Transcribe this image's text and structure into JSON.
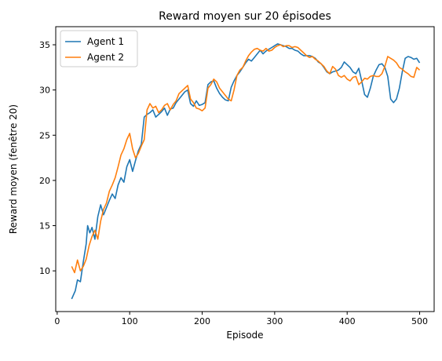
{
  "chart_data": {
    "type": "line",
    "title": "Reward moyen sur 20 épisodes",
    "xlabel": "Episode",
    "ylabel": "Reward moyen (fenêtre 20)",
    "xlim": [
      -2,
      520
    ],
    "ylim": [
      5.5,
      37
    ],
    "xticks": [
      0,
      100,
      200,
      300,
      400,
      500
    ],
    "yticks": [
      10,
      15,
      20,
      25,
      30,
      35
    ],
    "grid": false,
    "legend_position": "top-left",
    "series": [
      {
        "name": "Agent 1",
        "color": "#1f77b4",
        "x": [
          20,
          25,
          28,
          32,
          36,
          40,
          42,
          45,
          48,
          52,
          56,
          60,
          64,
          68,
          72,
          76,
          80,
          84,
          88,
          92,
          96,
          100,
          104,
          108,
          112,
          116,
          120,
          124,
          128,
          132,
          136,
          140,
          144,
          148,
          152,
          156,
          160,
          164,
          168,
          172,
          176,
          180,
          184,
          188,
          192,
          196,
          200,
          204,
          208,
          212,
          216,
          220,
          224,
          228,
          232,
          236,
          240,
          244,
          248,
          252,
          256,
          260,
          264,
          268,
          272,
          276,
          280,
          284,
          288,
          292,
          296,
          300,
          304,
          308,
          312,
          316,
          320,
          324,
          328,
          332,
          336,
          340,
          344,
          348,
          352,
          356,
          360,
          364,
          368,
          372,
          376,
          380,
          384,
          388,
          392,
          396,
          400,
          404,
          408,
          412,
          416,
          420,
          424,
          428,
          432,
          436,
          440,
          444,
          448,
          452,
          456,
          460,
          464,
          468,
          472,
          476,
          480,
          484,
          488,
          492,
          496,
          500
        ],
        "values": [
          6.9,
          7.8,
          9.0,
          8.8,
          11.0,
          13.0,
          15.0,
          14.2,
          14.8,
          13.5,
          16.0,
          17.3,
          16.2,
          17.0,
          17.8,
          18.5,
          18.0,
          19.5,
          20.3,
          19.8,
          21.5,
          22.3,
          21.0,
          22.2,
          23.3,
          24.0,
          27.0,
          27.3,
          27.5,
          27.8,
          27.0,
          27.3,
          27.6,
          28.0,
          27.2,
          27.9,
          28.0,
          28.6,
          29.0,
          29.4,
          29.8,
          30.0,
          28.5,
          28.2,
          28.8,
          28.3,
          28.4,
          28.6,
          30.6,
          30.9,
          31.0,
          30.2,
          29.6,
          29.2,
          28.9,
          28.8,
          30.3,
          31.0,
          31.6,
          32.0,
          32.5,
          33.0,
          33.4,
          33.2,
          33.6,
          34.0,
          34.4,
          34.0,
          34.3,
          34.5,
          34.7,
          34.9,
          35.1,
          35.0,
          34.9,
          34.8,
          34.6,
          34.6,
          34.4,
          34.3,
          34.0,
          33.8,
          33.8,
          33.8,
          33.7,
          33.5,
          33.1,
          32.9,
          32.5,
          32.0,
          31.8,
          32.0,
          32.1,
          32.2,
          32.5,
          33.1,
          32.8,
          32.5,
          32.0,
          31.8,
          32.4,
          31.0,
          29.5,
          29.2,
          30.2,
          31.5,
          32.2,
          32.8,
          32.9,
          32.5,
          31.5,
          29.0,
          28.6,
          29.0,
          30.2,
          32.0,
          33.5,
          33.7,
          33.6,
          33.4,
          33.5,
          33.0
        ]
      },
      {
        "name": "Agent 2",
        "color": "#ff7f0e",
        "x": [
          20,
          24,
          28,
          32,
          36,
          40,
          44,
          48,
          52,
          56,
          60,
          64,
          68,
          72,
          76,
          80,
          84,
          88,
          92,
          96,
          100,
          104,
          108,
          112,
          116,
          120,
          124,
          128,
          132,
          136,
          140,
          144,
          148,
          152,
          156,
          160,
          164,
          168,
          172,
          176,
          180,
          184,
          188,
          192,
          196,
          200,
          204,
          208,
          212,
          216,
          220,
          224,
          228,
          232,
          236,
          240,
          244,
          248,
          252,
          256,
          260,
          264,
          268,
          272,
          276,
          280,
          284,
          288,
          292,
          296,
          300,
          304,
          308,
          312,
          316,
          320,
          324,
          328,
          332,
          336,
          340,
          344,
          348,
          352,
          356,
          360,
          364,
          368,
          372,
          376,
          380,
          384,
          388,
          392,
          396,
          400,
          404,
          408,
          412,
          416,
          420,
          424,
          428,
          432,
          436,
          440,
          444,
          448,
          452,
          456,
          460,
          464,
          468,
          472,
          476,
          480,
          484,
          488,
          492,
          496,
          500
        ],
        "values": [
          10.5,
          9.8,
          11.2,
          10.0,
          10.5,
          11.3,
          12.8,
          13.8,
          14.5,
          13.5,
          15.5,
          16.8,
          17.5,
          18.8,
          19.5,
          20.3,
          21.5,
          22.8,
          23.5,
          24.5,
          25.2,
          23.5,
          22.5,
          23.0,
          23.8,
          24.5,
          27.8,
          28.5,
          28.0,
          28.2,
          27.5,
          27.8,
          28.3,
          28.5,
          27.8,
          28.4,
          28.8,
          29.6,
          29.9,
          30.2,
          30.5,
          29.0,
          28.6,
          28.0,
          27.9,
          27.7,
          28.0,
          30.2,
          30.6,
          31.2,
          30.9,
          30.2,
          29.8,
          29.4,
          29.0,
          28.8,
          30.0,
          31.6,
          32.2,
          32.5,
          33.2,
          33.8,
          34.2,
          34.5,
          34.6,
          34.4,
          34.3,
          34.6,
          34.3,
          34.4,
          34.7,
          34.9,
          35.0,
          34.8,
          34.9,
          34.9,
          34.7,
          34.8,
          34.7,
          34.4,
          34.1,
          33.8,
          33.6,
          33.7,
          33.4,
          33.2,
          32.9,
          32.6,
          32.1,
          31.8,
          32.6,
          32.3,
          31.6,
          31.4,
          31.6,
          31.2,
          31.0,
          31.4,
          31.5,
          30.6,
          30.9,
          31.3,
          31.2,
          31.5,
          31.6,
          31.5,
          31.5,
          31.8,
          32.6,
          33.7,
          33.5,
          33.3,
          33.0,
          32.5,
          32.3,
          32.0,
          31.8,
          31.5,
          31.4,
          32.5,
          32.2
        ]
      }
    ]
  }
}
